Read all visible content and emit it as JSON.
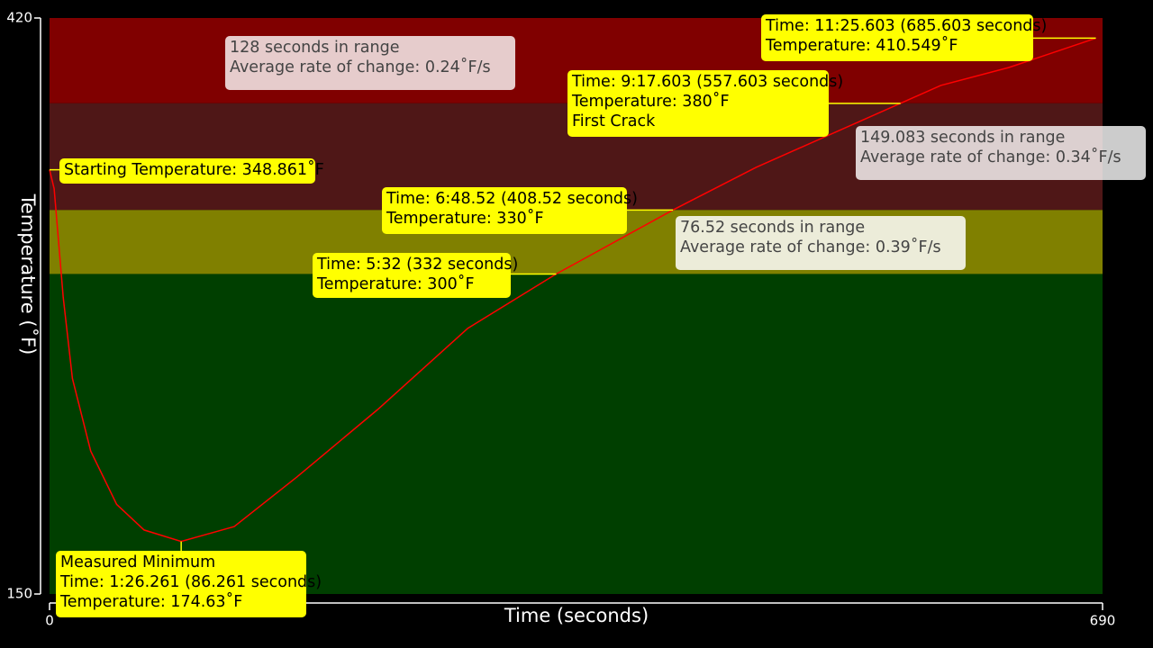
{
  "chart_data": {
    "type": "line",
    "x_label": "Time (seconds)",
    "y_label": "Temperature (˚F)",
    "xlim": [
      0,
      690
    ],
    "ylim": [
      150,
      420
    ],
    "xticks": [
      0,
      690
    ],
    "yticks": [
      150,
      420
    ],
    "bands": [
      {
        "from": 380,
        "to": 420,
        "color": "#800000"
      },
      {
        "from": 330,
        "to": 380,
        "color": "#4f1717"
      },
      {
        "from": 300,
        "to": 330,
        "color": "#808000"
      },
      {
        "from": 150,
        "to": 300,
        "color": "#003f00"
      }
    ],
    "series": [
      {
        "color": "#ff0000",
        "x": [
          0,
          3,
          9,
          15,
          27,
          44,
          62,
          86.261,
          121,
          162,
          215,
          274,
          332,
          408.52,
          463,
          557.603,
          584,
          628.6,
          685.603
        ],
        "values": [
          348.861,
          340,
          289,
          251,
          217,
          192,
          180,
          174.63,
          181.6,
          204.8,
          236.5,
          274.5,
          300,
          330,
          350,
          380,
          388.4,
          396.8,
          410.549
        ]
      }
    ],
    "annotations": [
      {
        "x": 0,
        "y": 348.861,
        "lines": [
          "Starting Temperature: 348.861˚F"
        ]
      },
      {
        "x": 86.261,
        "y": 174.63,
        "lines": [
          "Measured Minimum",
          "Time: 1:26.261 (86.261 seconds)",
          "Temperature: 174.63˚F"
        ]
      },
      {
        "x": 332,
        "y": 300,
        "lines": [
          "Time: 5:32 (332 seconds)",
          "Temperature: 300˚F"
        ]
      },
      {
        "x": 408.52,
        "y": 330,
        "lines": [
          "Time: 6:48.52 (408.52 seconds)",
          "Temperature: 330˚F"
        ]
      },
      {
        "x": 557.603,
        "y": 380,
        "lines": [
          "Time: 9:17.603 (557.603 seconds)",
          "Temperature: 380˚F",
          "First Crack"
        ]
      },
      {
        "x": 685.603,
        "y": 410.549,
        "lines": [
          "Time: 11:25.603 (685.603 seconds)",
          "Temperature: 410.549˚F"
        ]
      }
    ],
    "range_notes": [
      {
        "lines": [
          "128 seconds in range",
          "Average rate of change: 0.24˚F/s"
        ]
      },
      {
        "lines": [
          "149.083 seconds in range",
          "Average rate of change: 0.34˚F/s"
        ]
      },
      {
        "lines": [
          "76.52 seconds in range",
          "Average rate of change: 0.39˚F/s"
        ]
      }
    ]
  }
}
